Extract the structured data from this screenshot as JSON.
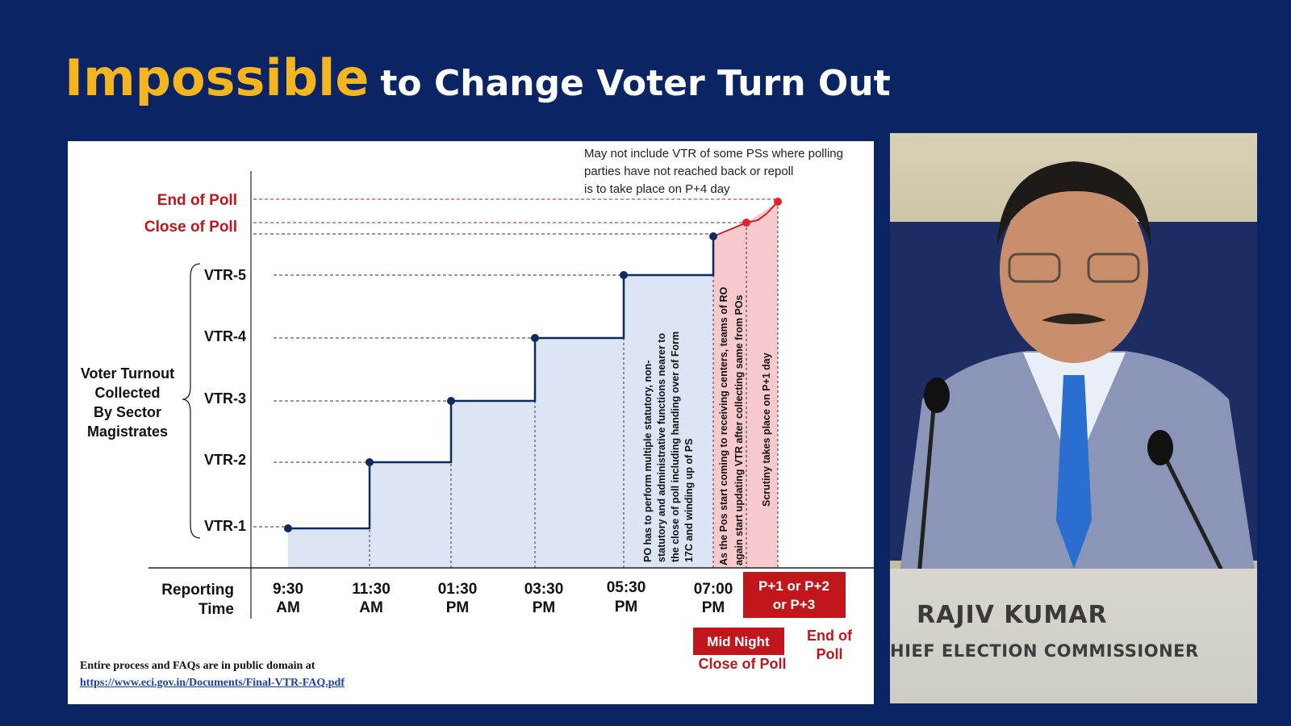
{
  "slide": {
    "title_emphasis": "Impossible",
    "title_rest": "to Change Voter Turn Out"
  },
  "chart_data": {
    "type": "line",
    "note": "May not include VTR of some PSs where polling parties have not reached back or repoll is to take place on P+4 day",
    "y_axis_title": [
      "Voter Turnout",
      "Collected",
      "By Sector",
      "Magistrates"
    ],
    "y_levels": [
      "VTR-1",
      "VTR-2",
      "VTR-3",
      "VTR-4",
      "VTR-5",
      "Close of Poll",
      "End of Poll"
    ],
    "x_axis_title": [
      "Reporting",
      "Time"
    ],
    "x_labels": [
      [
        "9:30",
        "AM"
      ],
      [
        "11:30",
        "AM"
      ],
      [
        "01:30",
        "PM"
      ],
      [
        "03:30",
        "PM"
      ],
      [
        "05:30",
        "PM"
      ],
      [
        "07:00",
        "PM"
      ]
    ],
    "steps": [
      {
        "x": "9:30 AM",
        "level": "VTR-1"
      },
      {
        "x": "11:30 AM",
        "level": "VTR-2"
      },
      {
        "x": "01:30 PM",
        "level": "VTR-3"
      },
      {
        "x": "03:30 PM",
        "level": "VTR-4"
      },
      {
        "x": "05:30 PM",
        "level": "VTR-5"
      }
    ],
    "annotations": {
      "po_duties": [
        "PO has to perform multiple statutory, non-",
        "statutory and administrative functions nearer to",
        "the close of poll including handing over of Form",
        "17C and winding up of PS"
      ],
      "receiving": [
        "As the Pos start coming to receiving centers, teams of RO",
        "again start updating VTR after collecting same from POs"
      ],
      "scrutiny": "Scrutiny takes place on P+1 day"
    },
    "bottom_tags": {
      "p_days": [
        "P+1 or P+2",
        "or P+3"
      ],
      "mid_night": "Mid Night",
      "close_of_poll": "Close of Poll",
      "end_of_poll": [
        "End of",
        "Poll"
      ]
    },
    "colors": {
      "accent_red": "#c0161c",
      "line": "#0f2a5c",
      "fill_blue": "#dce5f3",
      "fill_pink": "#f8c9cc"
    }
  },
  "footer": {
    "text": "Entire process and FAQs are in public domain at",
    "url": "https://www.eci.gov.in/Documents/Final-VTR-FAQ.pdf"
  },
  "video": {
    "name": "RAJIV KUMAR",
    "title": "HIEF ELECTION COMMISSIONER"
  }
}
